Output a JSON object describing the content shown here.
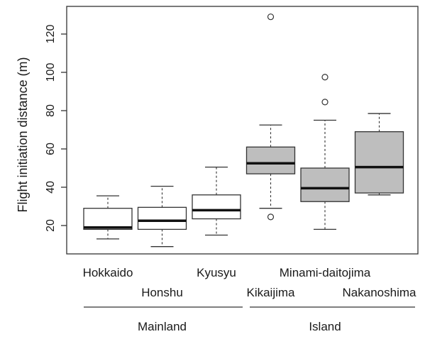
{
  "chart_data": {
    "type": "boxplot",
    "ylabel": "Flight initiation distance (m)",
    "ylim": [
      4,
      135
    ],
    "y_ticks": [
      20,
      40,
      60,
      80,
      100,
      120
    ],
    "grid": false,
    "legend": "none",
    "categories": [
      "Hokkaido",
      "Honshu",
      "Kyusyu",
      "Kikaijima",
      "Minami-daitojima",
      "Nakanoshima"
    ],
    "groups": [
      {
        "label": "Mainland",
        "members": [
          "Hokkaido",
          "Honshu",
          "Kyusyu"
        ]
      },
      {
        "label": "Island",
        "members": [
          "Kikaijima",
          "Minami-daitojima",
          "Nakanoshima"
        ]
      }
    ],
    "boxes": [
      {
        "name": "Hokkaido",
        "whisker_low": 13,
        "q1": 18,
        "median": 19,
        "q3": 29,
        "whisker_high": 35.5,
        "outliers": [],
        "fill": "#ffffff"
      },
      {
        "name": "Honshu",
        "whisker_low": 9,
        "q1": 18,
        "median": 22.5,
        "q3": 29.5,
        "whisker_high": 40.5,
        "outliers": [],
        "fill": "#ffffff"
      },
      {
        "name": "Kyusyu",
        "whisker_low": 15,
        "q1": 23.5,
        "median": 28,
        "q3": 36,
        "whisker_high": 50.5,
        "outliers": [],
        "fill": "#ffffff"
      },
      {
        "name": "Kikaijima",
        "whisker_low": 29,
        "q1": 47,
        "median": 52.5,
        "q3": 61,
        "whisker_high": 72.5,
        "outliers": [
          24.5,
          129
        ],
        "fill": "#bebebe"
      },
      {
        "name": "Minami-daitojima",
        "whisker_low": 18,
        "q1": 32.5,
        "median": 39.5,
        "q3": 50,
        "whisker_high": 75,
        "outliers": [
          84.5,
          97.5
        ],
        "fill": "#bebebe"
      },
      {
        "name": "Nakanoshima",
        "whisker_low": 36,
        "q1": 37,
        "median": 50.5,
        "q3": 69,
        "whisker_high": 78.5,
        "outliers": [],
        "fill": "#bebebe"
      }
    ]
  }
}
